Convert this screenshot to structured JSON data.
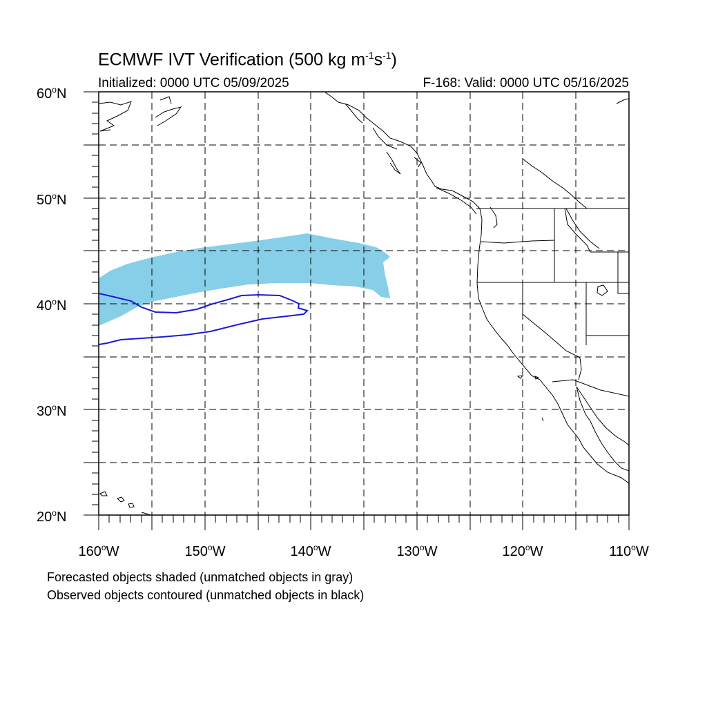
{
  "title": {
    "main": "ECMWF IVT Verification (500 kg m",
    "exp1": "-1",
    "mid": "s",
    "exp2": "-1",
    "end": ")"
  },
  "initialized": "Initialized: 0000 UTC 05/09/2025",
  "valid": "F-168: Valid: 0000 UTC 05/16/2025",
  "map": {
    "projection": "cylindrical equidistant",
    "lon_range": [
      -160,
      -110
    ],
    "lat_range": [
      20,
      60
    ],
    "grid_spacing_deg": 5,
    "lat_labels": [
      {
        "deg": "60",
        "hemi": "N"
      },
      {
        "deg": "50",
        "hemi": "N"
      },
      {
        "deg": "40",
        "hemi": "N"
      },
      {
        "deg": "30",
        "hemi": "N"
      },
      {
        "deg": "20",
        "hemi": "N"
      }
    ],
    "lon_labels": [
      {
        "deg": "160",
        "hemi": "W"
      },
      {
        "deg": "150",
        "hemi": "W"
      },
      {
        "deg": "140",
        "hemi": "W"
      },
      {
        "deg": "130",
        "hemi": "W"
      },
      {
        "deg": "120",
        "hemi": "W"
      },
      {
        "deg": "110",
        "hemi": "W"
      }
    ],
    "forecast_color": "#87cfe8",
    "observed_color": "#1a1ad6",
    "coast_color": "#000000"
  },
  "notes": {
    "line1": "Forecasted objects shaded (unmatched objects in gray)",
    "line2": "Observed objects contoured (unmatched objects in black)"
  }
}
